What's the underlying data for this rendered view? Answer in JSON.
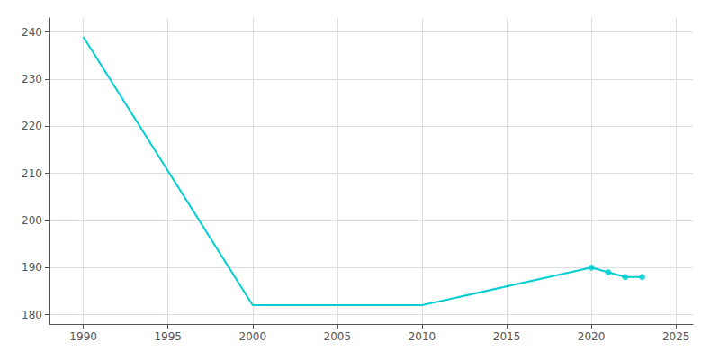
{
  "chart_data": {
    "type": "line",
    "x": [
      1990,
      2000,
      2010,
      2020,
      2021,
      2022,
      2023
    ],
    "series": [
      {
        "type": "line",
        "color": "#00CED1",
        "values": [
          239,
          182,
          182,
          190,
          189,
          188,
          188
        ]
      },
      {
        "type": "scatter",
        "color": "#00CED1",
        "marker": "circle",
        "x": [
          2020,
          2021,
          2022,
          2023
        ],
        "values": [
          190,
          189,
          188,
          188
        ]
      }
    ],
    "xlim": [
      1988,
      2026
    ],
    "xticks": [
      1990,
      1995,
      2000,
      2005,
      2010,
      2015,
      2020,
      2025
    ],
    "ylim": [
      178,
      243
    ],
    "yticks": [
      180,
      190,
      200,
      210,
      220,
      230,
      240
    ],
    "grid": true
  }
}
